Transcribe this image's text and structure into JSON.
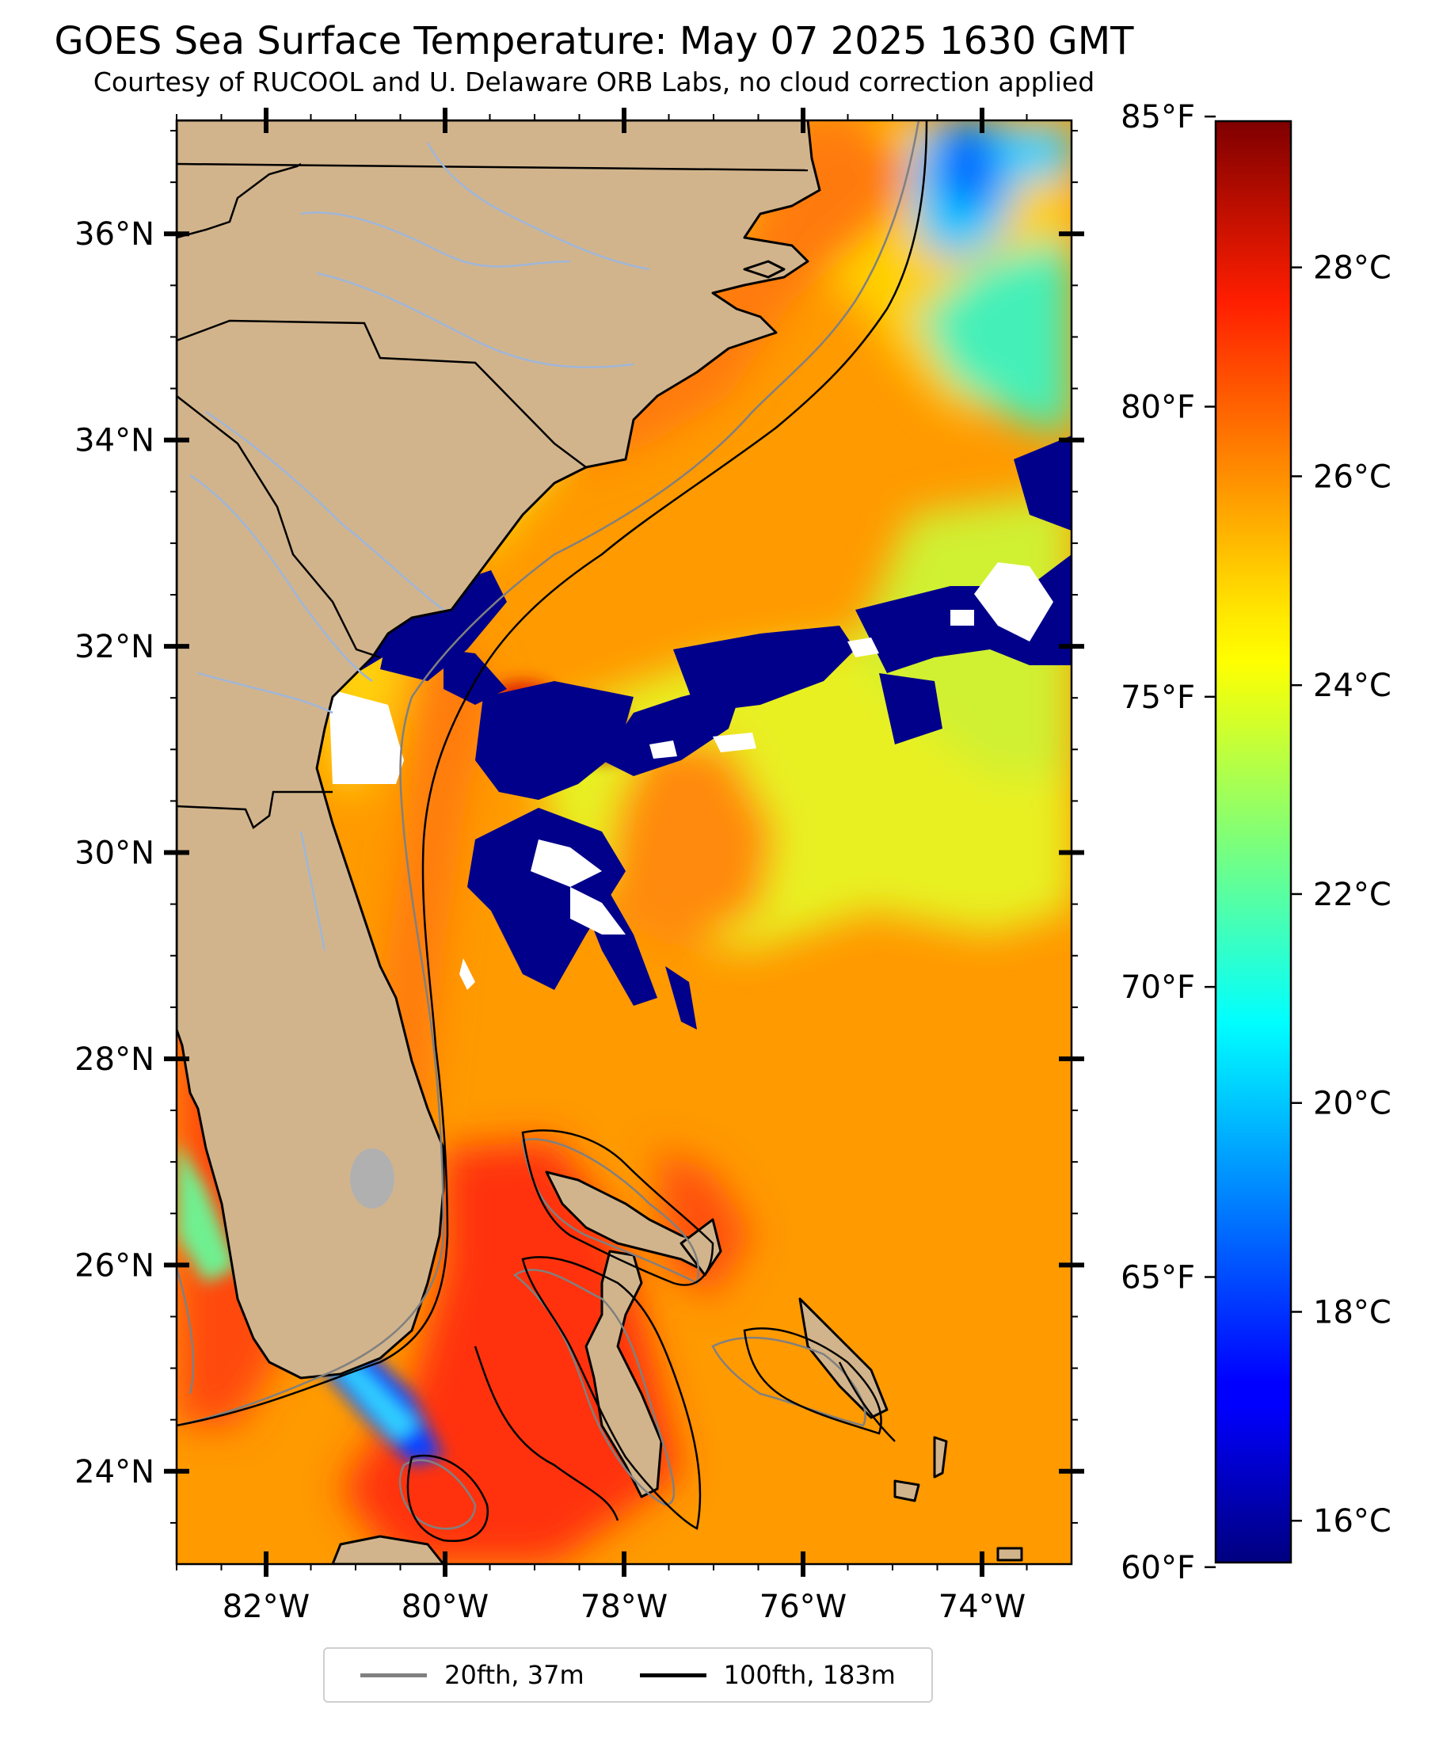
{
  "title": "GOES Sea Surface Temperature: May 07 2025 1630 GMT",
  "subtitle": "Courtesy of RUCOOL and U. Delaware ORB Labs, no cloud correction applied",
  "map": {
    "lon_range": [
      -83,
      -73
    ],
    "lat_range": [
      23.1,
      37.1
    ],
    "lat_tick_labels": [
      "36°N",
      "34°N",
      "32°N",
      "30°N",
      "28°N",
      "26°N",
      "24°N"
    ],
    "lat_ticks": [
      36,
      34,
      32,
      30,
      28,
      26,
      24
    ],
    "lon_tick_labels": [
      "82°W",
      "80°W",
      "78°W",
      "76°W",
      "74°W"
    ],
    "lon_ticks": [
      -82,
      -80,
      -78,
      -76,
      -74
    ],
    "colors": {
      "land": "#d2b48c",
      "lake": "#b0b0b0",
      "river": "#9fb6d8",
      "cloud": "#ffffff"
    }
  },
  "colorbar": {
    "colormap": "jet",
    "range_c": [
      15.6,
      29.4
    ],
    "celsius_ticks": [
      16,
      18,
      20,
      22,
      24,
      26,
      28
    ],
    "celsius_labels": [
      "16°C",
      "18°C",
      "20°C",
      "22°C",
      "24°C",
      "26°C",
      "28°C"
    ],
    "fahrenheit_ticks": [
      60,
      65,
      70,
      75,
      80,
      85
    ],
    "fahrenheit_labels": [
      "60°F",
      "65°F",
      "70°F",
      "75°F",
      "80°F",
      "85°F"
    ]
  },
  "legend": {
    "items": [
      {
        "label": "20fth, 37m",
        "color": "#808080"
      },
      {
        "label": "100fth, 183m",
        "color": "#000000"
      }
    ]
  }
}
